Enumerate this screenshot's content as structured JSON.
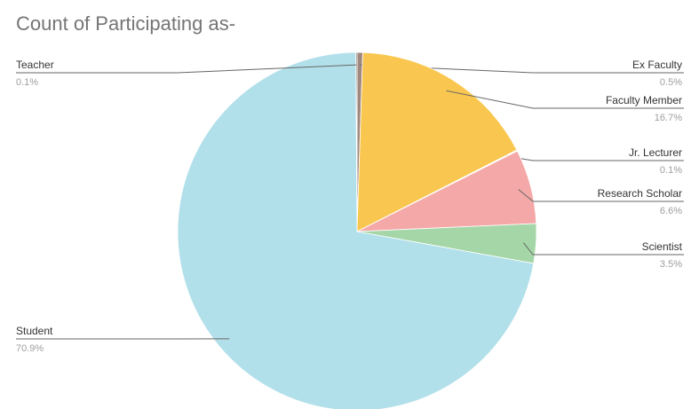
{
  "chart_data": {
    "type": "pie",
    "title": "Count of Participating as-",
    "slices": [
      {
        "label": "Ex Faculty",
        "percent_label": "0.5%",
        "value": 0.5,
        "color": "#a1887f"
      },
      {
        "label": "Faculty Member",
        "percent_label": "16.7%",
        "value": 16.7,
        "color": "#f9c74f"
      },
      {
        "label": "Jr. Lecturer",
        "percent_label": "0.1%",
        "value": 0.1,
        "color": "#ffffff"
      },
      {
        "label": "Research Scholar",
        "percent_label": "6.6%",
        "value": 6.6,
        "color": "#f4a9a8"
      },
      {
        "label": "Scientist",
        "percent_label": "3.5%",
        "value": 3.5,
        "color": "#a5d6a7"
      },
      {
        "label": "Student",
        "percent_label": "70.9%",
        "value": 70.9,
        "color": "#b2e0ea"
      },
      {
        "label": "Teacher",
        "percent_label": "0.1%",
        "value": 0.1,
        "color": "#5c4033"
      }
    ]
  }
}
